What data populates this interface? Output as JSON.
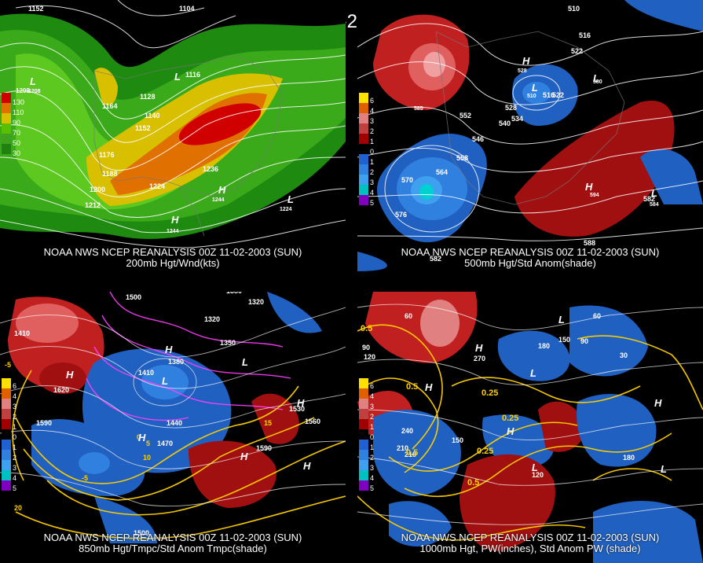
{
  "title": "00Z 11-02-2003 (SUN)",
  "panels": [
    {
      "source": "NOAA NWS NCEP REANALYSIS 00Z 11-02-2003 (SUN)",
      "field": "200mb Hgt/Wnd(kts)",
      "scale_labels": [
        "130",
        "110",
        "90",
        "70",
        "50",
        "30"
      ],
      "scale_colors": [
        "#d00000",
        "#e07000",
        "#d8c000",
        "#58c000",
        "#40a020",
        "#208010"
      ],
      "contour_labels": [
        "1152",
        "1104",
        "1116",
        "1164",
        "1128",
        "1140",
        "1152",
        "1176",
        "1188",
        "1200",
        "1212",
        "1224",
        "1236",
        "1244",
        "1224",
        "1208",
        "1208",
        "1244"
      ],
      "pressure_centers": [
        "L",
        "L",
        "H",
        "H",
        "L"
      ]
    },
    {
      "source": "NOAA NWS NCEP REANALYSIS 00Z 11-02-2003 (SUN)",
      "field": "500mb Hgt/Std Anom(shade)",
      "scale_labels": [
        "6",
        "4",
        "3",
        "2",
        "1",
        "0",
        "1",
        "2",
        "3",
        "4",
        "5"
      ],
      "scale_colors": [
        "#ffe000",
        "#e06000",
        "#e08080",
        "#c04040",
        "#a00000",
        "#000000",
        "#2060d0",
        "#3080e0",
        "#40a0f0",
        "#00c0c0",
        "#8000c0"
      ],
      "contour_labels": [
        "510",
        "516",
        "522",
        "528",
        "510",
        "516",
        "522",
        "528",
        "534",
        "540",
        "546",
        "552",
        "558",
        "564",
        "570",
        "576",
        "582",
        "588",
        "594",
        "582",
        "585",
        "584",
        "580"
      ],
      "pressure_centers": [
        "H",
        "L",
        "H",
        "L",
        "L"
      ]
    },
    {
      "source": "NOAA NWS NCEP REANALYSIS 00Z 11-02-2003 (SUN)",
      "field": "850mb Hgt/Tmpc/Std Anom Tmpc(shade)",
      "scale_labels": [
        "6",
        "4",
        "3",
        "2",
        "1",
        "0",
        "1",
        "2",
        "3",
        "4",
        "5"
      ],
      "scale_colors": [
        "#ffe000",
        "#e06000",
        "#e08080",
        "#c04040",
        "#a00000",
        "#000000",
        "#2060d0",
        "#3080e0",
        "#40a0f0",
        "#00c0c0",
        "#8000c0"
      ],
      "contour_labels": [
        "1500",
        "1380",
        "1320",
        "1350",
        "1380",
        "1410",
        "1440",
        "1470",
        "1500",
        "1530",
        "1560",
        "1590",
        "1620",
        "1410",
        "1320",
        "1590",
        "-5",
        "-5",
        "0",
        "5",
        "10",
        "15",
        "20"
      ],
      "pressure_centers": [
        "H",
        "H",
        "L",
        "H",
        "L",
        "H",
        "H",
        "H"
      ]
    },
    {
      "source": "NOAA NWS NCEP REANALYSIS 00Z 11-02-2003 (SUN)",
      "field": "1000mb Hgt, PW(inches), Std Anom PW (shade)",
      "scale_labels": [
        "6",
        "4",
        "3",
        "2",
        "1",
        "0",
        "1",
        "2",
        "3",
        "4",
        "5"
      ],
      "scale_colors": [
        "#ffe000",
        "#e06000",
        "#e08080",
        "#c04040",
        "#a00000",
        "#000000",
        "#2060d0",
        "#3080e0",
        "#40a0f0",
        "#00c0c0",
        "#8000c0"
      ],
      "contour_labels": [
        "60",
        "90",
        "120",
        "150",
        "180",
        "210",
        "240",
        "270",
        "30",
        "60",
        "90",
        "120",
        "150",
        "180",
        "210",
        "0.5",
        "0.25",
        "0.5",
        "0.25",
        "0.5",
        "0.25",
        "0.5"
      ],
      "pressure_centers": [
        "H",
        "L",
        "H",
        "H",
        "L",
        "L",
        "H",
        "L"
      ]
    }
  ]
}
